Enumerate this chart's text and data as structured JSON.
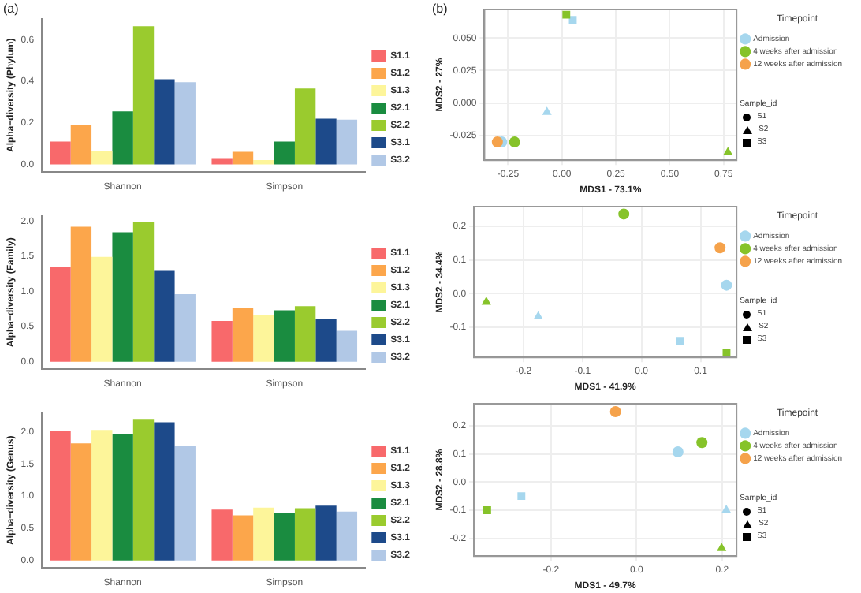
{
  "chart_data": [
    {
      "type": "bar",
      "title": "(a)",
      "ylabel": "Alpha−diversity (Phylum)",
      "categories": [
        "Shannon",
        "Simpson"
      ],
      "legend": "right",
      "grid": false,
      "ylim": [
        -0.035,
        0.7
      ],
      "yticks": [
        {
          "value": 0,
          "label": "0.0"
        },
        {
          "value": 0.2,
          "label": "0.2"
        },
        {
          "value": 0.4,
          "label": "0.4"
        },
        {
          "value": 0.6,
          "label": "0.6"
        }
      ],
      "series": [
        {
          "name": "S1.1",
          "color": "#f8696b",
          "values": [
            0.11,
            0.03
          ]
        },
        {
          "name": "S1.2",
          "color": "#fca64b",
          "values": [
            0.19,
            0.06
          ]
        },
        {
          "name": "S1.3",
          "color": "#fdf59a",
          "values": [
            0.065,
            0.02
          ]
        },
        {
          "name": "S2.1",
          "color": "#1a8c40",
          "values": [
            0.255,
            0.11
          ]
        },
        {
          "name": "S2.2",
          "color": "#9acb2e",
          "values": [
            0.665,
            0.365
          ]
        },
        {
          "name": "S3.1",
          "color": "#1d4a8a",
          "values": [
            0.41,
            0.22
          ]
        },
        {
          "name": "S3.2",
          "color": "#b1c8e6",
          "values": [
            0.395,
            0.215
          ]
        }
      ]
    },
    {
      "type": "bar",
      "ylabel": "Alpha−diversity (Family)",
      "categories": [
        "Shannon",
        "Simpson"
      ],
      "legend": "right",
      "grid": false,
      "ylim": [
        -0.1,
        2.07
      ],
      "yticks": [
        {
          "value": 0,
          "label": "0.0"
        },
        {
          "value": 0.5,
          "label": "0.5"
        },
        {
          "value": 1,
          "label": "1.0"
        },
        {
          "value": 1.5,
          "label": "1.5"
        },
        {
          "value": 2,
          "label": "2.0"
        }
      ],
      "series": [
        {
          "name": "S1.1",
          "color": "#f8696b",
          "values": [
            1.35,
            0.58
          ]
        },
        {
          "name": "S1.2",
          "color": "#fca64b",
          "values": [
            1.92,
            0.77
          ]
        },
        {
          "name": "S1.3",
          "color": "#fdf59a",
          "values": [
            1.49,
            0.67
          ]
        },
        {
          "name": "S2.1",
          "color": "#1a8c40",
          "values": [
            1.84,
            0.73
          ]
        },
        {
          "name": "S2.2",
          "color": "#9acb2e",
          "values": [
            1.98,
            0.79
          ]
        },
        {
          "name": "S3.1",
          "color": "#1d4a8a",
          "values": [
            1.29,
            0.61
          ]
        },
        {
          "name": "S3.2",
          "color": "#b1c8e6",
          "values": [
            0.96,
            0.44
          ]
        }
      ]
    },
    {
      "type": "bar",
      "ylabel": "Alpha−diversity (Genus)",
      "categories": [
        "Shannon",
        "Simpson"
      ],
      "legend": "right",
      "grid": false,
      "ylim": [
        -0.11,
        2.29
      ],
      "yticks": [
        {
          "value": 0,
          "label": "0.0"
        },
        {
          "value": 0.5,
          "label": "0.5"
        },
        {
          "value": 1,
          "label": "1.0"
        },
        {
          "value": 1.5,
          "label": "1.5"
        },
        {
          "value": 2,
          "label": "2.0"
        }
      ],
      "series": [
        {
          "name": "S1.1",
          "color": "#f8696b",
          "values": [
            2.02,
            0.79
          ]
        },
        {
          "name": "S1.2",
          "color": "#fca64b",
          "values": [
            1.82,
            0.7
          ]
        },
        {
          "name": "S1.3",
          "color": "#fdf59a",
          "values": [
            2.03,
            0.82
          ]
        },
        {
          "name": "S2.1",
          "color": "#1a8c40",
          "values": [
            1.97,
            0.74
          ]
        },
        {
          "name": "S2.2",
          "color": "#9acb2e",
          "values": [
            2.2,
            0.81
          ]
        },
        {
          "name": "S3.1",
          "color": "#1d4a8a",
          "values": [
            2.15,
            0.85
          ]
        },
        {
          "name": "S3.2",
          "color": "#b1c8e6",
          "values": [
            1.78,
            0.76
          ]
        }
      ]
    },
    {
      "type": "scatter",
      "title": "(b)",
      "xlabel": "MDS1 - 73.1%",
      "ylabel": "MDS2 - 27%",
      "legend": "right",
      "legend_title": "Timepoint",
      "grid": true,
      "annotations": [
        "Sample_id",
        "S1",
        "S2",
        "S3"
      ],
      "xlim": [
        -0.36,
        0.81
      ],
      "xticks": [
        {
          "value": -0.25,
          "label": "-0.25"
        },
        {
          "value": 0,
          "label": "0.00"
        },
        {
          "value": 0.25,
          "label": "0.25"
        },
        {
          "value": 0.5,
          "label": "0.50"
        },
        {
          "value": 0.75,
          "label": "0.75"
        }
      ],
      "ylim": [
        -0.044,
        0.072
      ],
      "yticks": [
        {
          "value": -0.025,
          "label": "-0.025"
        },
        {
          "value": 0,
          "label": "0.000"
        },
        {
          "value": 0.025,
          "label": "0.025"
        },
        {
          "value": 0.05,
          "label": "0.050"
        }
      ],
      "series": [
        {
          "name": "Admission",
          "color": "#a6d7ee",
          "marker": "circle",
          "x": [
            -0.28
          ],
          "values": [
            -0.03
          ]
        },
        {
          "color": "#a6d7ee",
          "marker": "triangle",
          "x": [
            -0.07
          ],
          "values": [
            -0.007
          ]
        },
        {
          "color": "#a6d7ee",
          "marker": "square",
          "x": [
            0.05
          ],
          "values": [
            0.064
          ]
        },
        {
          "name": "4 weeks after admission",
          "color": "#86c32a",
          "marker": "circle",
          "x": [
            -0.22
          ],
          "values": [
            -0.03
          ]
        },
        {
          "color": "#86c32a",
          "marker": "triangle",
          "x": [
            0.77
          ],
          "values": [
            -0.038
          ]
        },
        {
          "color": "#86c32a",
          "marker": "square",
          "x": [
            0.02
          ],
          "values": [
            0.068
          ]
        },
        {
          "name": "12 weeks after admission",
          "color": "#f5a24b",
          "marker": "circle",
          "x": [
            -0.3
          ],
          "values": [
            -0.03
          ]
        }
      ]
    },
    {
      "type": "scatter",
      "xlabel": "MDS1 - 41.9%",
      "ylabel": "MDS2 - 34.4%",
      "legend": "right",
      "legend_title": "Timepoint",
      "grid": true,
      "annotations": [
        "Sample_id",
        "S1",
        "S2",
        "S3"
      ],
      "xlim": [
        -0.284,
        0.161
      ],
      "xticks": [
        {
          "value": -0.2,
          "label": "-0.2"
        },
        {
          "value": -0.1,
          "label": "-0.1"
        },
        {
          "value": 0,
          "label": "0.0"
        },
        {
          "value": 0.1,
          "label": "0.1"
        }
      ],
      "ylim": [
        -0.189,
        0.258
      ],
      "yticks": [
        {
          "value": -0.1,
          "label": "-0.1"
        },
        {
          "value": 0,
          "label": "0.0"
        },
        {
          "value": 0.1,
          "label": "0.1"
        },
        {
          "value": 0.2,
          "label": "0.2"
        }
      ],
      "series": [
        {
          "name": "Admission",
          "color": "#a6d7ee",
          "marker": "circle",
          "x": [
            0.144
          ],
          "values": [
            0.025
          ]
        },
        {
          "color": "#a6d7ee",
          "marker": "triangle",
          "x": [
            -0.175
          ],
          "values": [
            -0.068
          ]
        },
        {
          "color": "#a6d7ee",
          "marker": "square",
          "x": [
            0.065
          ],
          "values": [
            -0.14
          ]
        },
        {
          "name": "4 weeks after admission",
          "color": "#86c32a",
          "marker": "circle",
          "x": [
            -0.03
          ],
          "values": [
            0.236
          ]
        },
        {
          "color": "#86c32a",
          "marker": "triangle",
          "x": [
            -0.263
          ],
          "values": [
            -0.025
          ]
        },
        {
          "color": "#86c32a",
          "marker": "square",
          "x": [
            0.144
          ],
          "values": [
            -0.175
          ]
        },
        {
          "name": "12 weeks after admission",
          "color": "#f5a24b",
          "marker": "circle",
          "x": [
            0.133
          ],
          "values": [
            0.136
          ]
        }
      ]
    },
    {
      "type": "scatter",
      "xlabel": "MDS1 - 49.7%",
      "ylabel": "MDS2 - 28.8%",
      "legend": "right",
      "legend_title": "Timepoint",
      "grid": true,
      "annotations": [
        "Sample_id",
        "S1",
        "S2",
        "S3"
      ],
      "xlim": [
        -0.38,
        0.234
      ],
      "xticks": [
        {
          "value": -0.2,
          "label": "-0.2"
        },
        {
          "value": 0,
          "label": "0.0"
        },
        {
          "value": 0.2,
          "label": "0.2"
        }
      ],
      "ylim": [
        -0.263,
        0.278
      ],
      "yticks": [
        {
          "value": -0.2,
          "label": "-0.2"
        },
        {
          "value": -0.1,
          "label": "-0.1"
        },
        {
          "value": 0,
          "label": "0.0"
        },
        {
          "value": 0.1,
          "label": "0.1"
        },
        {
          "value": 0.2,
          "label": "0.2"
        }
      ],
      "series": [
        {
          "name": "Admission",
          "color": "#a6d7ee",
          "marker": "circle",
          "x": [
            0.097
          ],
          "values": [
            0.107
          ]
        },
        {
          "color": "#a6d7ee",
          "marker": "triangle",
          "x": [
            0.21
          ],
          "values": [
            -0.1
          ]
        },
        {
          "color": "#a6d7ee",
          "marker": "square",
          "x": [
            -0.269
          ],
          "values": [
            -0.05
          ]
        },
        {
          "name": "4 weeks after admission",
          "color": "#86c32a",
          "marker": "circle",
          "x": [
            0.153
          ],
          "values": [
            0.14
          ]
        },
        {
          "color": "#86c32a",
          "marker": "triangle",
          "x": [
            0.199
          ],
          "values": [
            -0.235
          ]
        },
        {
          "color": "#86c32a",
          "marker": "square",
          "x": [
            -0.349
          ],
          "values": [
            -0.1
          ]
        },
        {
          "name": "12 weeks after admission",
          "color": "#f5a24b",
          "marker": "circle",
          "x": [
            -0.049
          ],
          "values": [
            0.25
          ]
        }
      ]
    }
  ]
}
